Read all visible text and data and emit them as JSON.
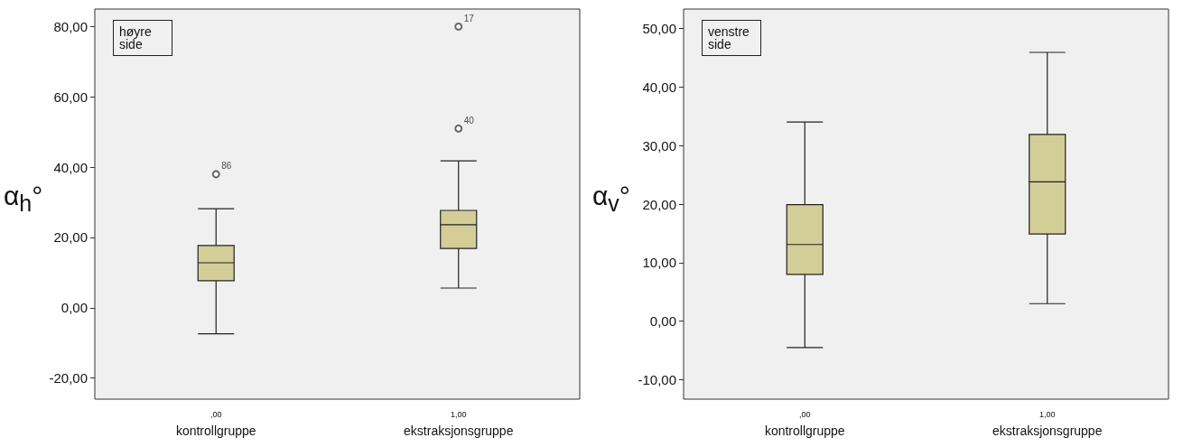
{
  "chart_data": [
    {
      "type": "box",
      "categories": [
        ",00\nkontrollgruppe",
        "1,00\nekstraksjonsgruppe"
      ],
      "ylabel": "α$_{h}$°",
      "color": "#d3cd97",
      "boxes": [
        {
          "low": -7.4,
          "q1": 7.7,
          "median": 12.8,
          "q3": 17.7,
          "high": 28.2,
          "outliers": [
            38
          ]
        },
        {
          "low": 5.6,
          "q1": 16.9,
          "median": 23.6,
          "q3": 27.7,
          "high": 41.8,
          "outliers": [
            51,
            80
          ]
        }
      ],
      "ylim": [
        -26,
        85
      ],
      "yticks": [
        {
          "value": -20,
          "label": "-20,00"
        },
        {
          "value": 0,
          "label": "0,00"
        },
        {
          "value": 20,
          "label": "20,00"
        },
        {
          "value": 40,
          "label": "40,00"
        },
        {
          "value": 60,
          "label": "60,00"
        },
        {
          "value": 80,
          "label": "80,00"
        }
      ],
      "annotations": [
        "høyre side",
        "86",
        "40",
        "17"
      ],
      "grid": false
    },
    {
      "type": "box",
      "categories": [
        ",00\nkontrollgruppe",
        "1,00\nekstraksjonsgruppe"
      ],
      "ylabel": "α$_{v}$°",
      "color": "#d3cd97",
      "boxes": [
        {
          "low": -4.5,
          "q1": 8,
          "median": 13.1,
          "q3": 19.9,
          "high": 34
        },
        {
          "low": 3,
          "q1": 14.9,
          "median": 23.8,
          "q3": 31.9,
          "high": 45.9
        }
      ],
      "ylim": [
        -13.3,
        53.3
      ],
      "yticks": [
        {
          "value": -10,
          "label": "-10,00"
        },
        {
          "value": 0,
          "label": "0,00"
        },
        {
          "value": 10,
          "label": "10,00"
        },
        {
          "value": 20,
          "label": "20,00"
        },
        {
          "value": 30,
          "label": "30,00"
        },
        {
          "value": 40,
          "label": "40,00"
        },
        {
          "value": 50,
          "label": "50,00"
        }
      ],
      "annotations": [
        "venstre side"
      ],
      "grid": false
    }
  ]
}
